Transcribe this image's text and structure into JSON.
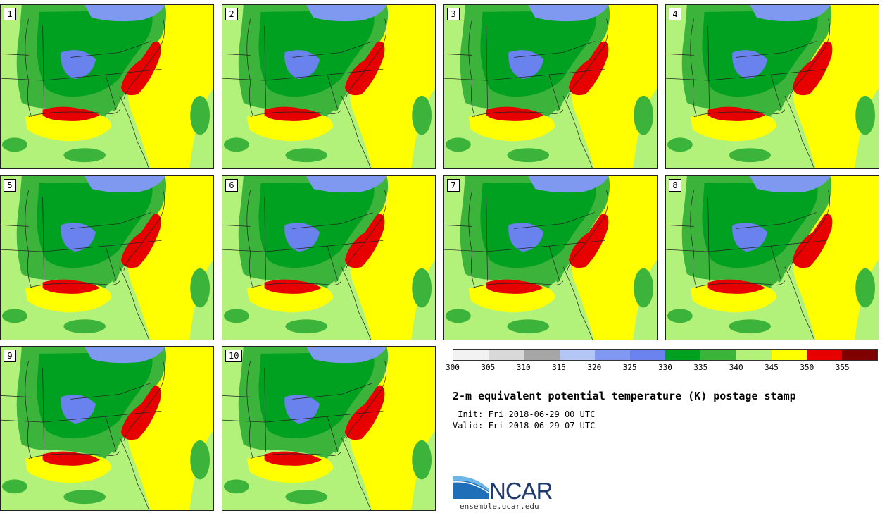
{
  "members": [
    "1",
    "2",
    "3",
    "4",
    "5",
    "6",
    "7",
    "8",
    "9",
    "10"
  ],
  "colorbar": {
    "colors": [
      "#f2f2f2",
      "#d9d9d9",
      "#a6a6a6",
      "#b3c6f5",
      "#7f99f0",
      "#6a82ee",
      "#00a020",
      "#3cb43c",
      "#b3f27a",
      "#ffff00",
      "#e60000",
      "#800000"
    ],
    "ticks": [
      "300",
      "305",
      "310",
      "315",
      "320",
      "325",
      "330",
      "335",
      "340",
      "345",
      "350",
      "355"
    ]
  },
  "title": "2-m equivalent potential temperature (K) postage stamp",
  "init": " Init: Fri 2018-06-29 00 UTC",
  "valid": "Valid: Fri 2018-06-29 07 UTC",
  "logo": {
    "name": "NCAR",
    "url": "ensemble.ucar.edu"
  }
}
